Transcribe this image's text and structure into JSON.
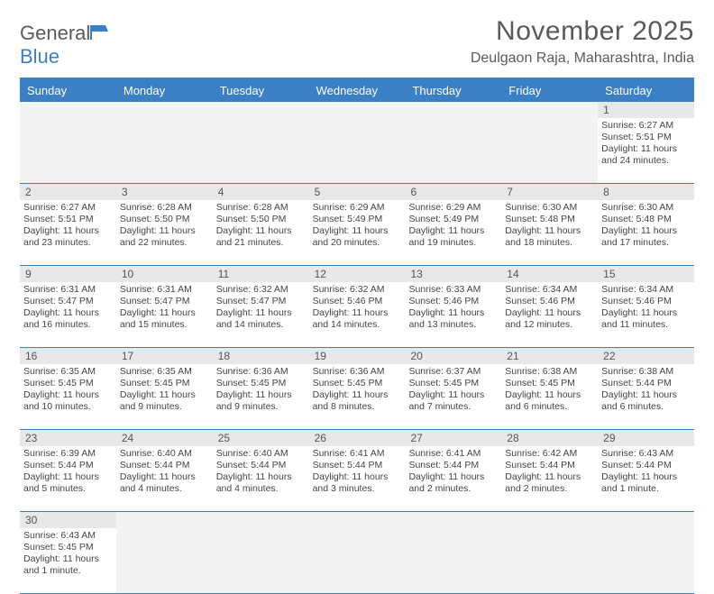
{
  "brand": {
    "name1": "General",
    "name2": "Blue"
  },
  "title": "November 2025",
  "subtitle": "Deulgaon Raja, Maharashtra, India",
  "colors": {
    "accent": "#3b7fc4",
    "text": "#5a5a5a",
    "header_bg": "#3b7fc4",
    "daynum_bg": "#e8e8e8"
  },
  "day_headers": [
    "Sunday",
    "Monday",
    "Tuesday",
    "Wednesday",
    "Thursday",
    "Friday",
    "Saturday"
  ],
  "weeks": [
    [
      null,
      null,
      null,
      null,
      null,
      null,
      {
        "n": "1",
        "sr": "Sunrise: 6:27 AM",
        "ss": "Sunset: 5:51 PM",
        "d1": "Daylight: 11 hours",
        "d2": "and 24 minutes."
      }
    ],
    [
      {
        "n": "2",
        "sr": "Sunrise: 6:27 AM",
        "ss": "Sunset: 5:51 PM",
        "d1": "Daylight: 11 hours",
        "d2": "and 23 minutes."
      },
      {
        "n": "3",
        "sr": "Sunrise: 6:28 AM",
        "ss": "Sunset: 5:50 PM",
        "d1": "Daylight: 11 hours",
        "d2": "and 22 minutes."
      },
      {
        "n": "4",
        "sr": "Sunrise: 6:28 AM",
        "ss": "Sunset: 5:50 PM",
        "d1": "Daylight: 11 hours",
        "d2": "and 21 minutes."
      },
      {
        "n": "5",
        "sr": "Sunrise: 6:29 AM",
        "ss": "Sunset: 5:49 PM",
        "d1": "Daylight: 11 hours",
        "d2": "and 20 minutes."
      },
      {
        "n": "6",
        "sr": "Sunrise: 6:29 AM",
        "ss": "Sunset: 5:49 PM",
        "d1": "Daylight: 11 hours",
        "d2": "and 19 minutes."
      },
      {
        "n": "7",
        "sr": "Sunrise: 6:30 AM",
        "ss": "Sunset: 5:48 PM",
        "d1": "Daylight: 11 hours",
        "d2": "and 18 minutes."
      },
      {
        "n": "8",
        "sr": "Sunrise: 6:30 AM",
        "ss": "Sunset: 5:48 PM",
        "d1": "Daylight: 11 hours",
        "d2": "and 17 minutes."
      }
    ],
    [
      {
        "n": "9",
        "sr": "Sunrise: 6:31 AM",
        "ss": "Sunset: 5:47 PM",
        "d1": "Daylight: 11 hours",
        "d2": "and 16 minutes."
      },
      {
        "n": "10",
        "sr": "Sunrise: 6:31 AM",
        "ss": "Sunset: 5:47 PM",
        "d1": "Daylight: 11 hours",
        "d2": "and 15 minutes."
      },
      {
        "n": "11",
        "sr": "Sunrise: 6:32 AM",
        "ss": "Sunset: 5:47 PM",
        "d1": "Daylight: 11 hours",
        "d2": "and 14 minutes."
      },
      {
        "n": "12",
        "sr": "Sunrise: 6:32 AM",
        "ss": "Sunset: 5:46 PM",
        "d1": "Daylight: 11 hours",
        "d2": "and 14 minutes."
      },
      {
        "n": "13",
        "sr": "Sunrise: 6:33 AM",
        "ss": "Sunset: 5:46 PM",
        "d1": "Daylight: 11 hours",
        "d2": "and 13 minutes."
      },
      {
        "n": "14",
        "sr": "Sunrise: 6:34 AM",
        "ss": "Sunset: 5:46 PM",
        "d1": "Daylight: 11 hours",
        "d2": "and 12 minutes."
      },
      {
        "n": "15",
        "sr": "Sunrise: 6:34 AM",
        "ss": "Sunset: 5:46 PM",
        "d1": "Daylight: 11 hours",
        "d2": "and 11 minutes."
      }
    ],
    [
      {
        "n": "16",
        "sr": "Sunrise: 6:35 AM",
        "ss": "Sunset: 5:45 PM",
        "d1": "Daylight: 11 hours",
        "d2": "and 10 minutes."
      },
      {
        "n": "17",
        "sr": "Sunrise: 6:35 AM",
        "ss": "Sunset: 5:45 PM",
        "d1": "Daylight: 11 hours",
        "d2": "and 9 minutes."
      },
      {
        "n": "18",
        "sr": "Sunrise: 6:36 AM",
        "ss": "Sunset: 5:45 PM",
        "d1": "Daylight: 11 hours",
        "d2": "and 9 minutes."
      },
      {
        "n": "19",
        "sr": "Sunrise: 6:36 AM",
        "ss": "Sunset: 5:45 PM",
        "d1": "Daylight: 11 hours",
        "d2": "and 8 minutes."
      },
      {
        "n": "20",
        "sr": "Sunrise: 6:37 AM",
        "ss": "Sunset: 5:45 PM",
        "d1": "Daylight: 11 hours",
        "d2": "and 7 minutes."
      },
      {
        "n": "21",
        "sr": "Sunrise: 6:38 AM",
        "ss": "Sunset: 5:45 PM",
        "d1": "Daylight: 11 hours",
        "d2": "and 6 minutes."
      },
      {
        "n": "22",
        "sr": "Sunrise: 6:38 AM",
        "ss": "Sunset: 5:44 PM",
        "d1": "Daylight: 11 hours",
        "d2": "and 6 minutes."
      }
    ],
    [
      {
        "n": "23",
        "sr": "Sunrise: 6:39 AM",
        "ss": "Sunset: 5:44 PM",
        "d1": "Daylight: 11 hours",
        "d2": "and 5 minutes."
      },
      {
        "n": "24",
        "sr": "Sunrise: 6:40 AM",
        "ss": "Sunset: 5:44 PM",
        "d1": "Daylight: 11 hours",
        "d2": "and 4 minutes."
      },
      {
        "n": "25",
        "sr": "Sunrise: 6:40 AM",
        "ss": "Sunset: 5:44 PM",
        "d1": "Daylight: 11 hours",
        "d2": "and 4 minutes."
      },
      {
        "n": "26",
        "sr": "Sunrise: 6:41 AM",
        "ss": "Sunset: 5:44 PM",
        "d1": "Daylight: 11 hours",
        "d2": "and 3 minutes."
      },
      {
        "n": "27",
        "sr": "Sunrise: 6:41 AM",
        "ss": "Sunset: 5:44 PM",
        "d1": "Daylight: 11 hours",
        "d2": "and 2 minutes."
      },
      {
        "n": "28",
        "sr": "Sunrise: 6:42 AM",
        "ss": "Sunset: 5:44 PM",
        "d1": "Daylight: 11 hours",
        "d2": "and 2 minutes."
      },
      {
        "n": "29",
        "sr": "Sunrise: 6:43 AM",
        "ss": "Sunset: 5:44 PM",
        "d1": "Daylight: 11 hours",
        "d2": "and 1 minute."
      }
    ],
    [
      {
        "n": "30",
        "sr": "Sunrise: 6:43 AM",
        "ss": "Sunset: 5:45 PM",
        "d1": "Daylight: 11 hours",
        "d2": "and 1 minute."
      },
      null,
      null,
      null,
      null,
      null,
      null
    ]
  ]
}
